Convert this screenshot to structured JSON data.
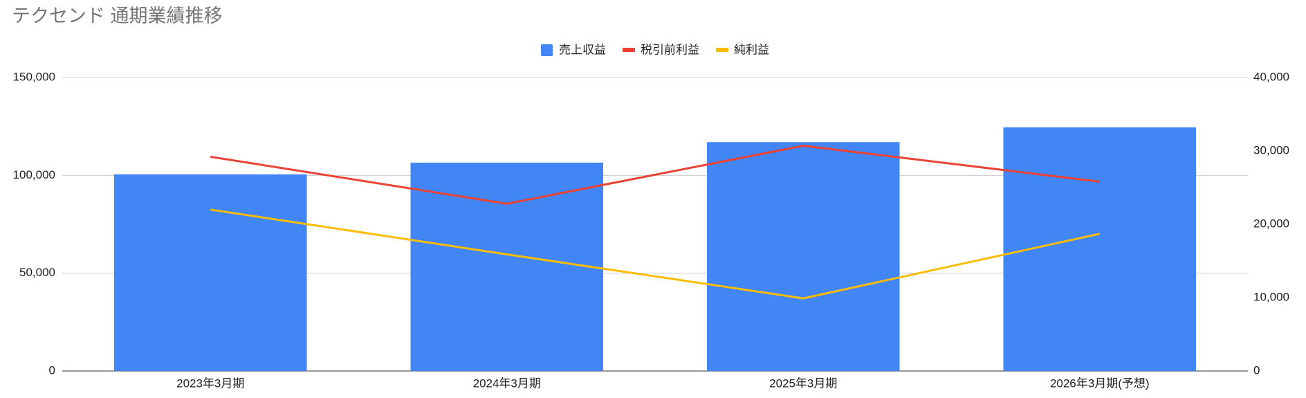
{
  "chart_data": {
    "type": "combo",
    "title": "テクセンド 通期業績推移",
    "categories": [
      "2023年3月期",
      "2024年3月期",
      "2025年3月期",
      "2026年3月期(予想)"
    ],
    "series": [
      {
        "name": "売上収益",
        "type": "bar",
        "color": "#4285f4",
        "values": [
          100500,
          106500,
          117000,
          124500
        ]
      },
      {
        "name": "税引前利益",
        "type": "line",
        "axis": "y2",
        "color": "#ea4335",
        "values": [
          29200,
          22800,
          30700,
          25800
        ]
      },
      {
        "name": "純利益",
        "type": "line",
        "axis": "y2",
        "color": "#fbbc04",
        "values": [
          22000,
          15900,
          9900,
          18700
        ]
      }
    ],
    "ylim": [
      0,
      150000
    ],
    "yticks": [
      0,
      {
        "value": 50000,
        "label": "50,000"
      },
      {
        "value": 100000,
        "label": "100,000"
      },
      {
        "value": 150000,
        "label": "150,000"
      }
    ],
    "y2lim": [
      0,
      40000
    ],
    "y2ticks": [
      0,
      {
        "value": 10000,
        "label": "10,000"
      },
      {
        "value": 20000,
        "label": "20,000"
      },
      {
        "value": 30000,
        "label": "30,000"
      },
      {
        "value": 40000,
        "label": "40,000"
      }
    ],
    "grid": true,
    "legend": "top"
  }
}
